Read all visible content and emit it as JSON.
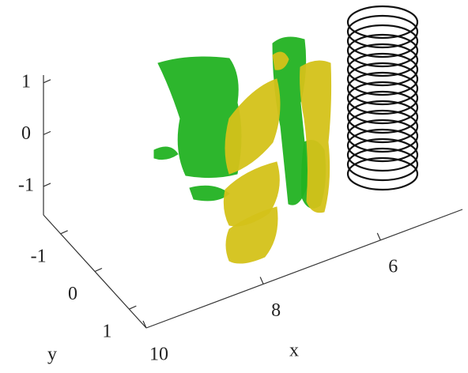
{
  "chart_data": {
    "type": "isosurface",
    "xlabel": "x",
    "ylabel": "y",
    "xlim": [
      4.6,
      10
    ],
    "xticks": [
      6,
      8,
      10
    ],
    "ylim": [
      -1.5,
      1.5
    ],
    "yticks": [
      -1,
      0,
      1
    ],
    "zlim": [
      -1.55,
      1.15
    ],
    "zticks": [
      -1,
      0,
      1
    ],
    "colors": {
      "positive": "#d4c21a",
      "negative": "#22b322",
      "coil": "#111111"
    }
  }
}
